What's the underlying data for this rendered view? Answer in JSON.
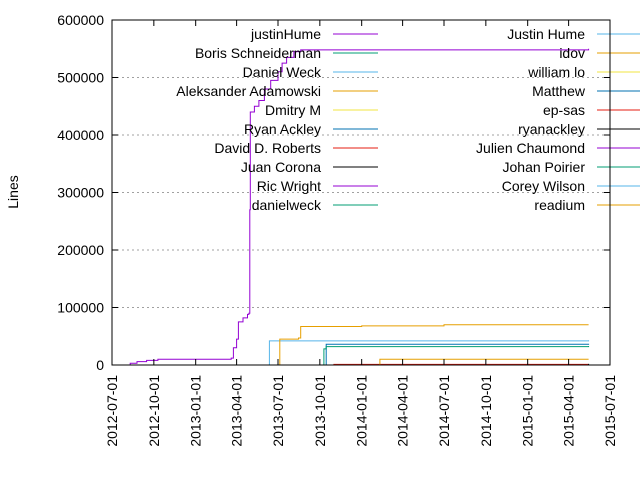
{
  "chart_data": {
    "type": "line",
    "ylabel": "Lines",
    "ylim": [
      0,
      600000
    ],
    "xlim": [
      "2012-07-01",
      "2015-07-01"
    ],
    "grid": "horizontal dotted",
    "legend_placement": "two columns across top",
    "y_ticks": [
      {
        "value": 0,
        "label": "0"
      },
      {
        "value": 100000,
        "label": "100000"
      },
      {
        "value": 200000,
        "label": "200000"
      },
      {
        "value": 300000,
        "label": "300000"
      },
      {
        "value": 400000,
        "label": "400000"
      },
      {
        "value": 500000,
        "label": "500000"
      },
      {
        "value": 600000,
        "label": "600000"
      }
    ],
    "x_ticks": [
      {
        "value": "2012-07-01",
        "label": "2012-07-01"
      },
      {
        "value": "2012-10-01",
        "label": "2012-10-01"
      },
      {
        "value": "2013-01-01",
        "label": "2013-01-01"
      },
      {
        "value": "2013-04-01",
        "label": "2013-04-01"
      },
      {
        "value": "2013-07-01",
        "label": "2013-07-01"
      },
      {
        "value": "2013-10-01",
        "label": "2013-10-01"
      },
      {
        "value": "2014-01-01",
        "label": "2014-01-01"
      },
      {
        "value": "2014-04-01",
        "label": "2014-04-01"
      },
      {
        "value": "2014-07-01",
        "label": "2014-07-01"
      },
      {
        "value": "2014-10-01",
        "label": "2014-10-01"
      },
      {
        "value": "2015-01-01",
        "label": "2015-01-01"
      },
      {
        "value": "2015-04-01",
        "label": "2015-04-01"
      },
      {
        "value": "2015-07-01",
        "label": "2015-07-01"
      }
    ],
    "series": [
      {
        "name": "justinHume",
        "color": "#9400d3",
        "points": [
          [
            "2012-08-01",
            0
          ],
          [
            "2012-08-10",
            3000
          ],
          [
            "2012-08-25",
            6000
          ],
          [
            "2012-09-15",
            8000
          ],
          [
            "2012-10-10",
            10000
          ],
          [
            "2013-03-20",
            12000
          ],
          [
            "2013-03-25",
            30000
          ],
          [
            "2013-04-01",
            45000
          ],
          [
            "2013-04-05",
            75000
          ],
          [
            "2013-04-15",
            82000
          ],
          [
            "2013-04-25",
            88000
          ],
          [
            "2013-04-28",
            90000
          ],
          [
            "2013-04-30",
            270000
          ],
          [
            "2013-05-01",
            440000
          ],
          [
            "2013-05-10",
            450000
          ],
          [
            "2013-05-20",
            460000
          ],
          [
            "2013-06-01",
            480000
          ],
          [
            "2013-06-15",
            495000
          ],
          [
            "2013-07-01",
            510000
          ],
          [
            "2013-07-10",
            525000
          ],
          [
            "2013-07-20",
            535000
          ],
          [
            "2013-08-05",
            545000
          ],
          [
            "2013-08-20",
            548000
          ],
          [
            "2015-05-15",
            550000
          ]
        ]
      },
      {
        "name": "Boris Schneiderman",
        "color": "#009e73",
        "points": []
      },
      {
        "name": "Daniel Weck",
        "color": "#56b4e9",
        "points": [
          [
            "2013-06-10",
            0
          ],
          [
            "2013-06-12",
            42000
          ],
          [
            "2014-01-01",
            42000
          ],
          [
            "2015-05-15",
            43000
          ]
        ]
      },
      {
        "name": "Aleksander Adamowski",
        "color": "#e69f00",
        "points": [
          [
            "2013-07-01",
            0
          ],
          [
            "2013-07-05",
            45000
          ],
          [
            "2013-08-15",
            47000
          ],
          [
            "2013-08-20",
            67000
          ],
          [
            "2014-01-01",
            68000
          ],
          [
            "2014-07-01",
            70000
          ],
          [
            "2015-05-15",
            70000
          ]
        ]
      },
      {
        "name": "Dmitry M",
        "color": "#f0e442",
        "points": []
      },
      {
        "name": "Ryan Ackley",
        "color": "#0072b2",
        "points": [
          [
            "2013-10-10",
            0
          ],
          [
            "2013-10-15",
            36000
          ],
          [
            "2015-05-15",
            37000
          ]
        ]
      },
      {
        "name": "David D. Roberts",
        "color": "#e51e10",
        "points": [
          [
            "2013-10-01",
            0
          ],
          [
            "2013-11-01",
            1000
          ],
          [
            "2015-05-15",
            1000
          ]
        ]
      },
      {
        "name": "Juan Corona",
        "color": "#000000",
        "points": [
          [
            "2013-11-15",
            0
          ],
          [
            "2015-05-15",
            2000
          ]
        ]
      },
      {
        "name": "Ric Wright",
        "color": "#9400d3",
        "points": []
      },
      {
        "name": "danielweck",
        "color": "#009e73",
        "points": [
          [
            "2013-10-01",
            0
          ],
          [
            "2013-10-10",
            28000
          ],
          [
            "2013-10-15",
            32000
          ],
          [
            "2015-05-15",
            33000
          ]
        ]
      },
      {
        "name": "Justin Hume",
        "color": "#56b4e9",
        "points": []
      },
      {
        "name": "idov",
        "color": "#e69f00",
        "points": [
          [
            "2014-02-01",
            0
          ],
          [
            "2014-02-10",
            10000
          ],
          [
            "2015-05-15",
            10000
          ]
        ]
      },
      {
        "name": "william lo",
        "color": "#f0e442",
        "points": []
      },
      {
        "name": "Matthew",
        "color": "#0072b2",
        "points": []
      },
      {
        "name": "ep-sas",
        "color": "#e51e10",
        "points": []
      },
      {
        "name": "ryanackley",
        "color": "#000000",
        "points": []
      },
      {
        "name": "Julien Chaumond",
        "color": "#9400d3",
        "points": []
      },
      {
        "name": "Johan Poirier",
        "color": "#009e73",
        "points": []
      },
      {
        "name": "Corey Wilson",
        "color": "#56b4e9",
        "points": []
      },
      {
        "name": "readium",
        "color": "#e69f00",
        "points": []
      }
    ]
  }
}
